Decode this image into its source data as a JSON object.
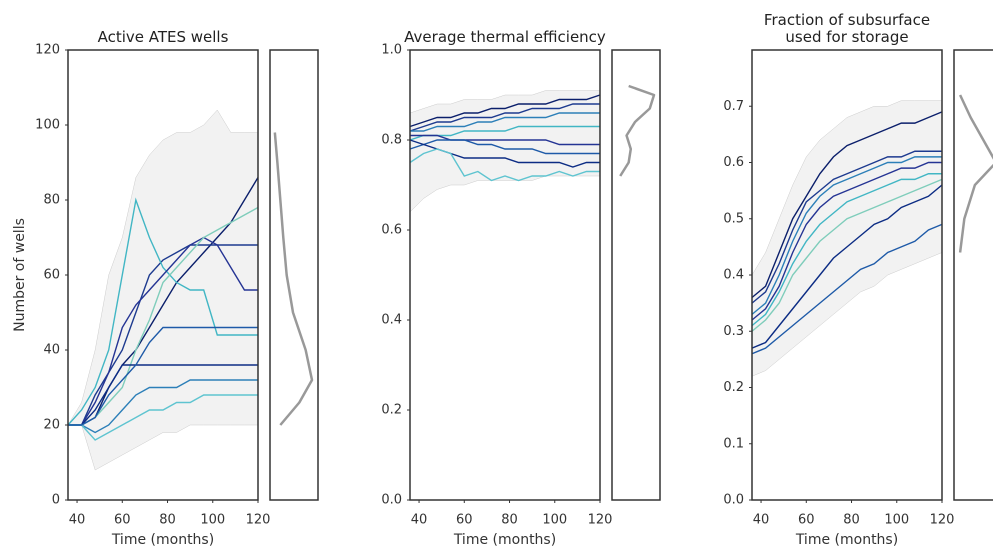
{
  "chart_data": [
    {
      "type": "line",
      "title": "Active ATES wells",
      "xlabel": "Time (months)",
      "ylabel": "Number of wells",
      "x": [
        36,
        42,
        48,
        54,
        60,
        66,
        72,
        78,
        84,
        90,
        96,
        102,
        108,
        114,
        120
      ],
      "xlim": [
        36,
        120
      ],
      "xticks": [
        40,
        60,
        80,
        100,
        120
      ],
      "ylim": [
        0,
        120
      ],
      "yticks": [
        0,
        20,
        40,
        60,
        80,
        100,
        120
      ],
      "band_color": "#f2f2f2",
      "band_low": [
        20,
        20,
        8,
        10,
        12,
        14,
        16,
        18,
        18,
        20,
        20,
        20,
        20,
        20,
        20
      ],
      "band_high": [
        20,
        26,
        40,
        60,
        70,
        86,
        92,
        96,
        98,
        98,
        100,
        104,
        98,
        98,
        98
      ],
      "series": [
        {
          "color": "#0b1f6b",
          "values": [
            20,
            20,
            22,
            30,
            36,
            40,
            46,
            52,
            58,
            62,
            66,
            70,
            74,
            80,
            86
          ]
        },
        {
          "color": "#1d3a8f",
          "values": [
            20,
            20,
            28,
            34,
            40,
            50,
            60,
            64,
            66,
            68,
            68,
            68,
            68,
            68,
            68
          ]
        },
        {
          "color": "#41b6c4",
          "values": [
            20,
            24,
            30,
            40,
            60,
            80,
            70,
            62,
            58,
            56,
            56,
            44,
            44,
            44,
            44
          ]
        },
        {
          "color": "#253494",
          "values": [
            20,
            20,
            26,
            34,
            46,
            52,
            56,
            60,
            64,
            68,
            70,
            68,
            62,
            56,
            56
          ]
        },
        {
          "color": "#7fcdbb",
          "values": [
            20,
            20,
            22,
            26,
            30,
            40,
            48,
            58,
            62,
            66,
            70,
            72,
            74,
            76,
            78
          ]
        },
        {
          "color": "#0c2c84",
          "values": [
            20,
            20,
            24,
            30,
            36,
            36,
            36,
            36,
            36,
            36,
            36,
            36,
            36,
            36,
            36
          ]
        },
        {
          "color": "#2c7fb8",
          "values": [
            20,
            20,
            18,
            20,
            24,
            28,
            30,
            30,
            30,
            32,
            32,
            32,
            32,
            32,
            32
          ]
        },
        {
          "color": "#5ec4d0",
          "values": [
            20,
            20,
            16,
            18,
            20,
            22,
            24,
            24,
            26,
            26,
            28,
            28,
            28,
            28,
            28
          ]
        },
        {
          "color": "#1e5aa8",
          "values": [
            20,
            20,
            22,
            28,
            32,
            36,
            42,
            46,
            46,
            46,
            46,
            46,
            46,
            46,
            46
          ]
        }
      ],
      "density": {
        "color": "#999999",
        "y": [
          20,
          26,
          32,
          40,
          50,
          60,
          70,
          80,
          90,
          98
        ],
        "values": [
          0.15,
          0.6,
          0.9,
          0.75,
          0.45,
          0.3,
          0.22,
          0.15,
          0.08,
          0.02
        ]
      }
    },
    {
      "type": "line",
      "title": "Average thermal efficiency",
      "xlabel": "Time (months)",
      "x": [
        36,
        42,
        48,
        54,
        60,
        66,
        72,
        78,
        84,
        90,
        96,
        102,
        108,
        114,
        120
      ],
      "xlim": [
        36,
        120
      ],
      "xticks": [
        40,
        60,
        80,
        100,
        120
      ],
      "ylim": [
        0,
        1
      ],
      "yticks": [
        {
          "value": 0,
          "label": "0.0"
        },
        0.2,
        0.4,
        0.6,
        0.8,
        {
          "value": 1,
          "label": "1.0"
        }
      ],
      "band_color": "#f2f2f2",
      "band_low": [
        0.64,
        0.67,
        0.69,
        0.7,
        0.7,
        0.71,
        0.71,
        0.71,
        0.71,
        0.71,
        0.72,
        0.72,
        0.72,
        0.72,
        0.72
      ],
      "band_high": [
        0.86,
        0.87,
        0.88,
        0.88,
        0.89,
        0.89,
        0.89,
        0.9,
        0.9,
        0.9,
        0.91,
        0.91,
        0.91,
        0.91,
        0.91
      ],
      "series": [
        {
          "color": "#0b1f6b",
          "values": [
            0.83,
            0.84,
            0.85,
            0.85,
            0.86,
            0.86,
            0.87,
            0.87,
            0.88,
            0.88,
            0.88,
            0.89,
            0.89,
            0.89,
            0.9
          ]
        },
        {
          "color": "#1d3a8f",
          "values": [
            0.82,
            0.83,
            0.84,
            0.84,
            0.85,
            0.85,
            0.85,
            0.86,
            0.86,
            0.87,
            0.87,
            0.87,
            0.88,
            0.88,
            0.88
          ]
        },
        {
          "color": "#2c7fb8",
          "values": [
            0.82,
            0.82,
            0.83,
            0.83,
            0.83,
            0.84,
            0.84,
            0.85,
            0.85,
            0.85,
            0.85,
            0.86,
            0.86,
            0.86,
            0.86
          ]
        },
        {
          "color": "#41b6c4",
          "values": [
            0.8,
            0.81,
            0.81,
            0.81,
            0.82,
            0.82,
            0.82,
            0.82,
            0.83,
            0.83,
            0.83,
            0.83,
            0.83,
            0.83,
            0.83
          ]
        },
        {
          "color": "#253494",
          "values": [
            0.81,
            0.81,
            0.81,
            0.8,
            0.8,
            0.8,
            0.8,
            0.8,
            0.8,
            0.8,
            0.8,
            0.79,
            0.79,
            0.79,
            0.79
          ]
        },
        {
          "color": "#1e5aa8",
          "values": [
            0.78,
            0.79,
            0.8,
            0.8,
            0.8,
            0.79,
            0.79,
            0.78,
            0.78,
            0.78,
            0.77,
            0.77,
            0.77,
            0.77,
            0.77
          ]
        },
        {
          "color": "#0c2c84",
          "values": [
            0.8,
            0.79,
            0.78,
            0.77,
            0.76,
            0.76,
            0.76,
            0.76,
            0.75,
            0.75,
            0.75,
            0.75,
            0.74,
            0.75,
            0.75
          ]
        },
        {
          "color": "#5ec4d0",
          "values": [
            0.75,
            0.77,
            0.78,
            0.77,
            0.72,
            0.73,
            0.71,
            0.72,
            0.71,
            0.72,
            0.72,
            0.73,
            0.72,
            0.73,
            0.73
          ]
        }
      ],
      "density": {
        "color": "#999999",
        "y": [
          0.72,
          0.75,
          0.78,
          0.81,
          0.84,
          0.87,
          0.9,
          0.92
        ],
        "values": [
          0.1,
          0.3,
          0.35,
          0.25,
          0.45,
          0.8,
          0.9,
          0.3
        ]
      }
    },
    {
      "type": "line",
      "title": "Fraction of subsurface\nused for storage",
      "xlabel": "Time (months)",
      "x": [
        36,
        42,
        48,
        54,
        60,
        66,
        72,
        78,
        84,
        90,
        96,
        102,
        108,
        114,
        120
      ],
      "xlim": [
        36,
        120
      ],
      "xticks": [
        40,
        60,
        80,
        100,
        120
      ],
      "ylim": [
        0,
        0.8
      ],
      "yticks": [
        {
          "value": 0,
          "label": "0.0"
        },
        0.1,
        0.2,
        0.3,
        0.4,
        0.5,
        0.6,
        0.7
      ],
      "band_color": "#f2f2f2",
      "band_low": [
        0.22,
        0.23,
        0.25,
        0.27,
        0.29,
        0.31,
        0.33,
        0.35,
        0.37,
        0.38,
        0.4,
        0.41,
        0.42,
        0.43,
        0.44
      ],
      "band_high": [
        0.4,
        0.44,
        0.5,
        0.56,
        0.61,
        0.64,
        0.66,
        0.68,
        0.69,
        0.7,
        0.7,
        0.71,
        0.71,
        0.71,
        0.71
      ],
      "series": [
        {
          "color": "#0b1f6b",
          "values": [
            0.36,
            0.38,
            0.44,
            0.5,
            0.54,
            0.58,
            0.61,
            0.63,
            0.64,
            0.65,
            0.66,
            0.67,
            0.67,
            0.68,
            0.69
          ]
        },
        {
          "color": "#1d3a8f",
          "values": [
            0.35,
            0.37,
            0.42,
            0.48,
            0.53,
            0.55,
            0.57,
            0.58,
            0.59,
            0.6,
            0.61,
            0.61,
            0.62,
            0.62,
            0.62
          ]
        },
        {
          "color": "#2c7fb8",
          "values": [
            0.33,
            0.35,
            0.4,
            0.46,
            0.51,
            0.54,
            0.56,
            0.57,
            0.58,
            0.59,
            0.6,
            0.6,
            0.61,
            0.61,
            0.61
          ]
        },
        {
          "color": "#253494",
          "values": [
            0.32,
            0.34,
            0.38,
            0.44,
            0.49,
            0.52,
            0.54,
            0.55,
            0.56,
            0.57,
            0.58,
            0.59,
            0.59,
            0.6,
            0.6
          ]
        },
        {
          "color": "#41b6c4",
          "values": [
            0.31,
            0.33,
            0.37,
            0.42,
            0.46,
            0.49,
            0.51,
            0.53,
            0.54,
            0.55,
            0.56,
            0.57,
            0.57,
            0.58,
            0.58
          ]
        },
        {
          "color": "#7fcdbb",
          "values": [
            0.3,
            0.32,
            0.35,
            0.4,
            0.43,
            0.46,
            0.48,
            0.5,
            0.51,
            0.52,
            0.53,
            0.54,
            0.55,
            0.56,
            0.57
          ]
        },
        {
          "color": "#0c2c84",
          "values": [
            0.27,
            0.28,
            0.31,
            0.34,
            0.37,
            0.4,
            0.43,
            0.45,
            0.47,
            0.49,
            0.5,
            0.52,
            0.53,
            0.54,
            0.56
          ]
        },
        {
          "color": "#1e5aa8",
          "values": [
            0.26,
            0.27,
            0.29,
            0.31,
            0.33,
            0.35,
            0.37,
            0.39,
            0.41,
            0.42,
            0.44,
            0.45,
            0.46,
            0.48,
            0.49
          ]
        }
      ],
      "density": {
        "color": "#999999",
        "y": [
          0.44,
          0.5,
          0.56,
          0.6,
          0.64,
          0.68,
          0.72
        ],
        "values": [
          0.05,
          0.15,
          0.4,
          0.9,
          0.6,
          0.3,
          0.05
        ]
      }
    }
  ]
}
